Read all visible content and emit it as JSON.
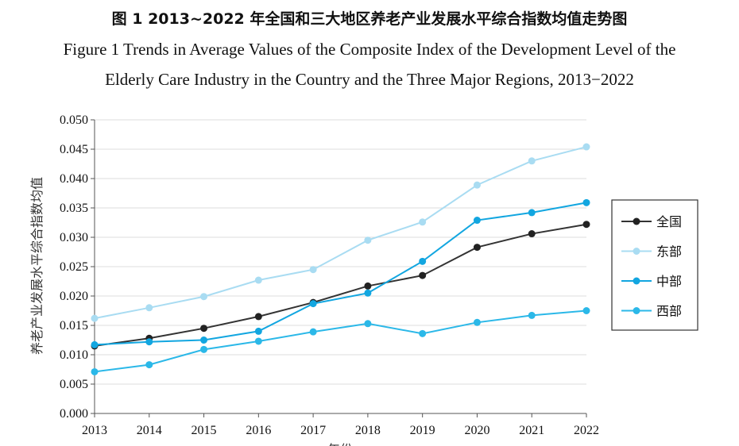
{
  "figure": {
    "title_cn": "图 1 2013~2022 年全国和三大地区养老产业发展水平综合指数均值走势图",
    "title_en_line1": "Figure 1 Trends in Average Values of the Composite Index of the Development Level of the",
    "title_en_line2": "Elderly Care Industry in the Country and the Three Major Regions, 2013−2022"
  },
  "chart_data": {
    "type": "line",
    "x": [
      "2013",
      "2014",
      "2015",
      "2016",
      "2017",
      "2018",
      "2019",
      "2020",
      "2021",
      "2022"
    ],
    "xlabel": "年份",
    "ylabel": "养老产业发展水平综合指数均值",
    "ylim": [
      0,
      0.05
    ],
    "yticks": [
      "0.000",
      "0.005",
      "0.010",
      "0.015",
      "0.020",
      "0.025",
      "0.030",
      "0.035",
      "0.040",
      "0.045",
      "0.050"
    ],
    "grid": "horizontal",
    "legend_position": "right",
    "series": [
      {
        "name": "全国",
        "color": "#333333",
        "marker_color": "#222222",
        "values": [
          0.0115,
          0.0128,
          0.0145,
          0.0165,
          0.0189,
          0.0217,
          0.0235,
          0.0283,
          0.0306,
          0.0322
        ]
      },
      {
        "name": "东部",
        "color": "#a9dcf2",
        "marker_color": "#a9dcf2",
        "values": [
          0.0162,
          0.018,
          0.0199,
          0.0227,
          0.0245,
          0.0295,
          0.0326,
          0.0389,
          0.043,
          0.0454
        ]
      },
      {
        "name": "中部",
        "color": "#12a6e0",
        "marker_color": "#12a6e0",
        "values": [
          0.0117,
          0.0122,
          0.0125,
          0.014,
          0.0187,
          0.0205,
          0.0259,
          0.0329,
          0.0342,
          0.0359
        ]
      },
      {
        "name": "西部",
        "color": "#2bb8e8",
        "marker_color": "#2bb8e8",
        "values": [
          0.0071,
          0.0083,
          0.0109,
          0.0123,
          0.0139,
          0.0153,
          0.0136,
          0.0155,
          0.0167,
          0.0175
        ]
      }
    ]
  }
}
